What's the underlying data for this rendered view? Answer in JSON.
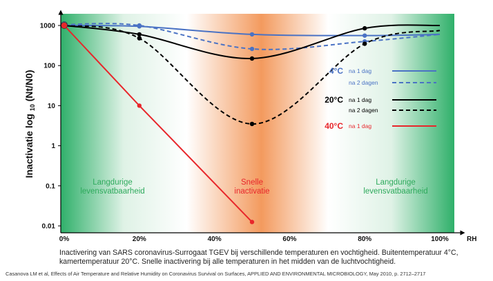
{
  "chart_data": {
    "type": "line",
    "xlabel": "RH",
    "ylabel": "Inactivatie log",
    "ylabel_sub": "10",
    "ylabel_fraction": "(Nt/N0)",
    "x_ticks": [
      "0%",
      "20%",
      "40%",
      "60%",
      "80%",
      "100%"
    ],
    "y_ticks": [
      "0.01",
      "0.1",
      "1",
      "10",
      "100",
      "1000"
    ],
    "xlim": [
      0,
      100
    ],
    "ylim": [
      0.01,
      1000
    ],
    "y_scale": "log",
    "series": [
      {
        "name": "na 1 dag",
        "group": "4°C",
        "color": "#4a72c4",
        "dash": "solid",
        "x": [
          0,
          20,
          50,
          80,
          100
        ],
        "y": [
          1000,
          950,
          600,
          560,
          600
        ]
      },
      {
        "name": "na 2 dagen",
        "group": "4°C",
        "color": "#4a72c4",
        "dash": "dashed",
        "x": [
          0,
          20,
          50,
          80,
          100
        ],
        "y": [
          1050,
          1000,
          260,
          400,
          600
        ]
      },
      {
        "name": "na 1 dag",
        "group": "20°C",
        "color": "#000000",
        "dash": "solid",
        "x": [
          0,
          20,
          50,
          80,
          100
        ],
        "y": [
          1000,
          600,
          150,
          850,
          1000
        ]
      },
      {
        "name": "na 2 dagen",
        "group": "20°C",
        "color": "#000000",
        "dash": "dashed",
        "x": [
          0,
          20,
          50,
          80,
          100
        ],
        "y": [
          1000,
          480,
          3.5,
          350,
          750
        ]
      },
      {
        "name": "na 1 dag",
        "group": "40°C",
        "color": "#e8262b",
        "dash": "solid",
        "x": [
          0,
          20,
          50
        ],
        "y": [
          1000,
          10,
          0.0125
        ]
      }
    ],
    "legend": [
      {
        "label": "4°C",
        "color": "#4a72c4",
        "entries": [
          {
            "text": "na 1 dag",
            "dash": "solid"
          },
          {
            "text": "na 2 dagen",
            "dash": "dashed"
          }
        ]
      },
      {
        "label": "20°C",
        "color": "#000000",
        "entries": [
          {
            "text": "na 1 dag",
            "dash": "solid"
          },
          {
            "text": "na 2 dagen",
            "dash": "dashed"
          }
        ]
      },
      {
        "label": "40°C",
        "color": "#e8262b",
        "entries": [
          {
            "text": "na 1 dag",
            "dash": "solid"
          }
        ]
      }
    ],
    "zones": [
      {
        "line1": "Langdurige",
        "line2": "levensvatbaarheid",
        "color": "#2eaa5c"
      },
      {
        "line1": "Snelle",
        "line2": "inactivatie",
        "color": "#e8262b"
      },
      {
        "line1": "Langdurige",
        "line2": "levensvatbaarheid",
        "color": "#2eaa5c"
      }
    ],
    "background": {
      "green": "#2fb06a",
      "orange": "#f39a5e"
    },
    "legend_placement": "right",
    "grid": false
  },
  "caption": "Inactivering van SARS coronavirus-Surrogaat TGEV bij verschillende temperaturen en vochtigheid. Buitentemperatuur 4°C, kamertemperatuur 20°C. Snelle inactivering bij alle temperaturen in het midden van de luchtvochtigheid.",
  "source": "Casanova LM et al, Effects of Air Temperature and Relative Humidity on Coronavirus Survival on Surfaces, APPLIED AND ENVIRONMENTAL MICROBIOLOGY, May 2010, p. 2712–2717"
}
